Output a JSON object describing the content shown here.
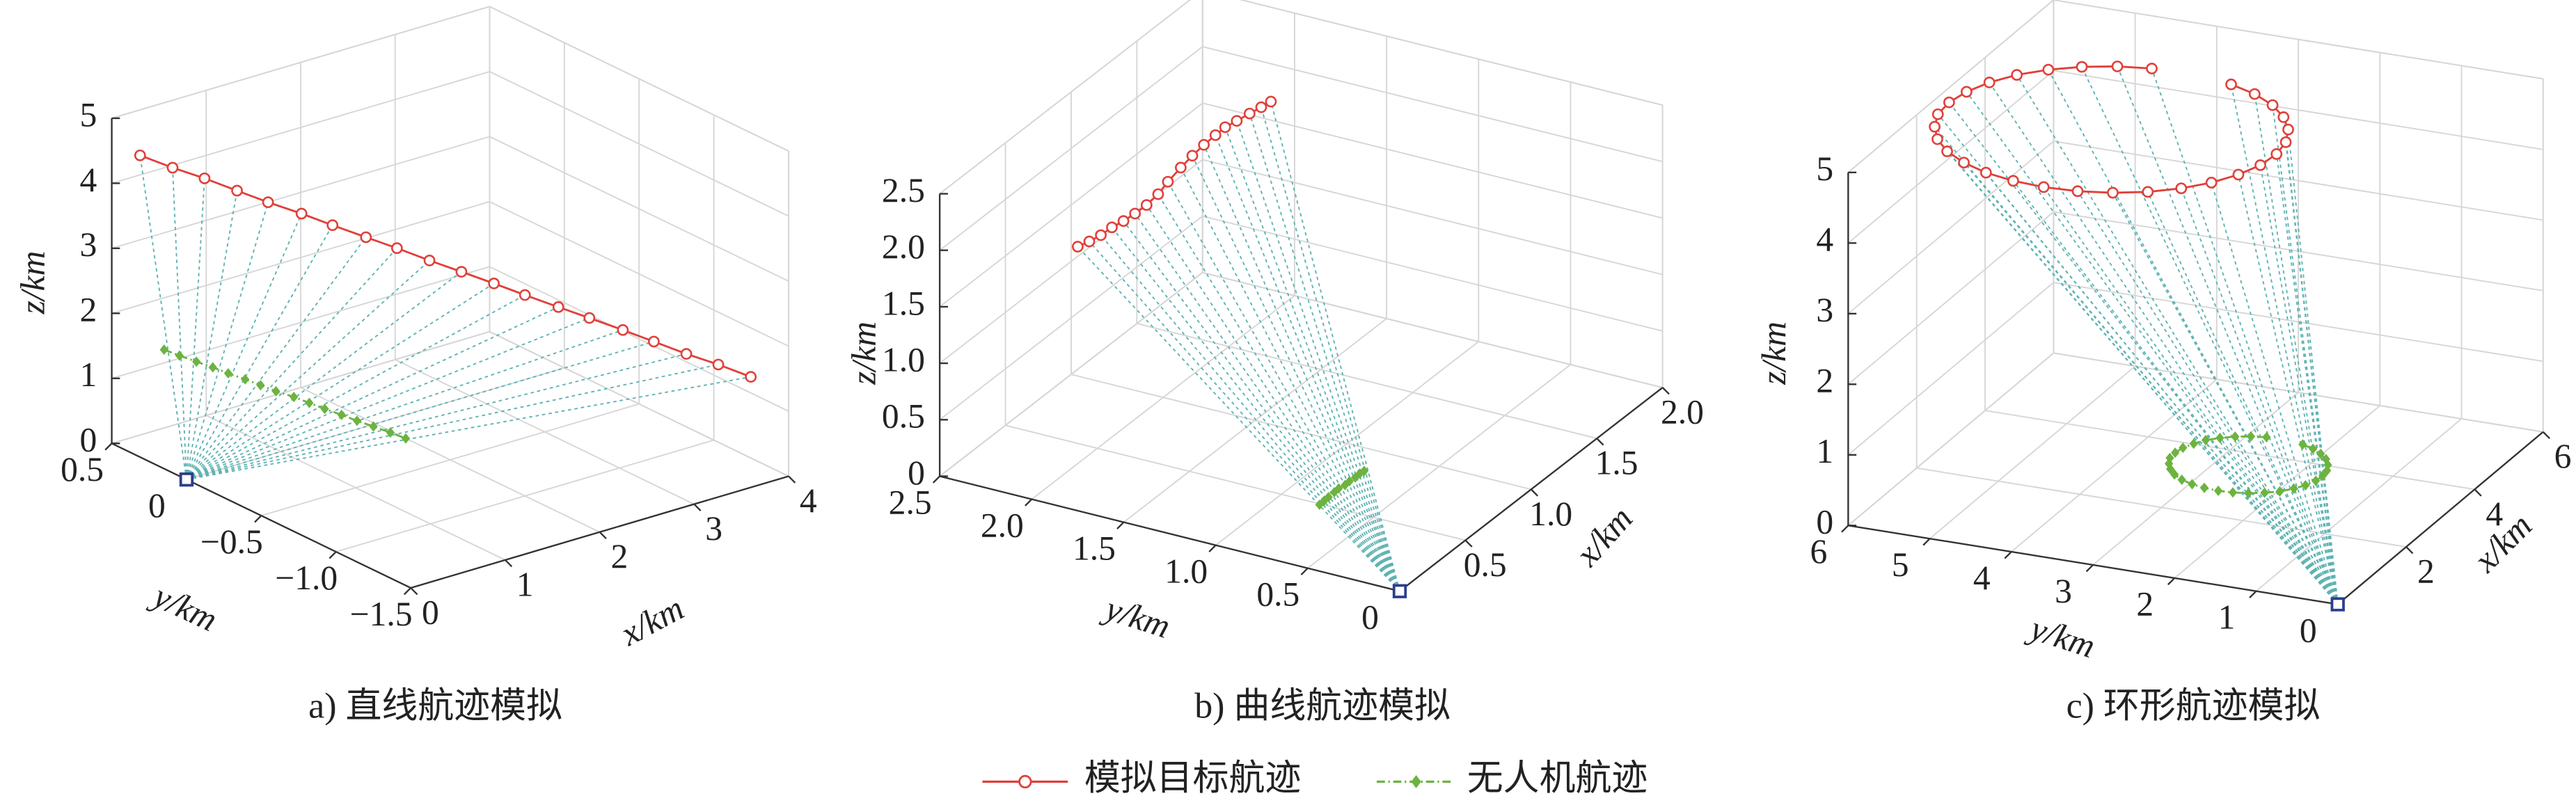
{
  "chart_data": [
    {
      "type": "line3d",
      "title": "a) 直线航迹模拟",
      "xlabel": "x/km",
      "ylabel": "y/km",
      "zlabel": "z/km",
      "xlim": [
        0,
        4
      ],
      "xticks": [
        0,
        1,
        2,
        3,
        4
      ],
      "ylim": [
        -1.5,
        0.5
      ],
      "yticks": [
        {
          "value": -1.5,
          "label": "−1.5"
        },
        {
          "value": -1,
          "label": "−1.0"
        },
        {
          "value": -0.5,
          "label": "−0.5"
        },
        0,
        0.5
      ],
      "zlim": [
        0,
        5
      ],
      "zticks": [
        0,
        1,
        2,
        3,
        4,
        5
      ],
      "grid": true,
      "station": {
        "x": 0,
        "y": 0,
        "z": 0,
        "color": "#2c3e8c"
      },
      "series": [
        {
          "name": "模拟目标航迹",
          "color": "#e0403a",
          "marker": "circle",
          "x": [
            0.3,
            0.47,
            0.65,
            0.82,
            0.99,
            1.17,
            1.34,
            1.52,
            1.69,
            1.86,
            2.04,
            2.21,
            2.38,
            2.56,
            2.73,
            2.91,
            3.08,
            3.25,
            3.43,
            3.6
          ],
          "y": [
            0.5,
            0.39,
            0.29,
            0.18,
            0.08,
            -0.03,
            -0.13,
            -0.24,
            -0.34,
            -0.45,
            -0.55,
            -0.66,
            -0.76,
            -0.87,
            -0.97,
            -1.08,
            -1.18,
            -1.29,
            -1.39,
            -1.5
          ],
          "z": [
            4.3,
            4.16,
            4.03,
            3.89,
            3.75,
            3.62,
            3.48,
            3.34,
            3.21,
            3.07,
            2.93,
            2.8,
            2.66,
            2.52,
            2.39,
            2.25,
            2.11,
            1.97,
            1.84,
            1.7
          ]
        },
        {
          "name": "无人机航迹",
          "color": "#6db33f",
          "marker": "diamond",
          "x": [
            0,
            0.1,
            0.2,
            0.31,
            0.41,
            0.51,
            0.61,
            0.71,
            0.82,
            0.92,
            1.02,
            1.12,
            1.22,
            1.33,
            1.43,
            1.53
          ],
          "y": [
            0.15,
            0.11,
            0.06,
            0.02,
            -0.02,
            -0.07,
            -0.11,
            -0.15,
            -0.2,
            -0.24,
            -0.28,
            -0.33,
            -0.37,
            -0.41,
            -0.46,
            -0.5
          ],
          "z": [
            1.83,
            1.74,
            1.66,
            1.57,
            1.48,
            1.4,
            1.31,
            1.22,
            1.14,
            1.05,
            0.96,
            0.88,
            0.79,
            0.7,
            0.62,
            0.53
          ]
        }
      ]
    },
    {
      "type": "line3d",
      "title": "b) 曲线航迹模拟",
      "xlabel": "x/km",
      "ylabel": "y/km",
      "zlabel": "z/km",
      "xlim": [
        0,
        2
      ],
      "xticks": [
        0.5,
        {
          "value": 1,
          "label": "1.0"
        },
        1.5,
        {
          "value": 2,
          "label": "2.0"
        }
      ],
      "ylim": [
        0,
        2.5
      ],
      "yticks": [
        0,
        0.5,
        {
          "value": 1,
          "label": "1.0"
        },
        1.5,
        {
          "value": 2,
          "label": "2.0"
        },
        2.5
      ],
      "zlim": [
        0,
        2.5
      ],
      "zticks": [
        0,
        0.5,
        {
          "value": 1,
          "label": "1.0"
        },
        1.5,
        {
          "value": 2,
          "label": "2.0"
        },
        2.5
      ],
      "grid": true,
      "station": {
        "x": 0,
        "y": 0,
        "z": 0,
        "color": "#2c3e8c"
      },
      "series": [
        {
          "color": "#e0403a",
          "marker": "circle",
          "x": [
            0.35,
            0.41,
            0.47,
            0.54,
            0.6,
            0.66,
            0.72,
            0.78,
            0.84,
            0.91,
            0.97,
            1.03,
            1.09,
            1.15,
            1.21,
            1.28,
            1.34,
            1.4
          ],
          "y": [
            2.0,
            1.98,
            1.96,
            1.95,
            1.93,
            1.91,
            1.89,
            1.87,
            1.86,
            1.84,
            1.82,
            1.8,
            1.78,
            1.77,
            1.75,
            1.73,
            1.71,
            1.7
          ],
          "z": [
            1.92,
            1.92,
            1.93,
            1.94,
            1.95,
            1.97,
            2.0,
            2.05,
            2.11,
            2.18,
            2.24,
            2.29,
            2.33,
            2.35,
            2.36,
            2.37,
            2.38,
            2.38
          ]
        },
        {
          "color": "#6db33f",
          "marker": "diamond",
          "x": [
            0.3,
            0.32,
            0.34,
            0.37,
            0.39,
            0.41,
            0.43,
            0.46,
            0.48,
            0.5
          ],
          "y": [
            0.65,
            0.64,
            0.63,
            0.62,
            0.61,
            0.59,
            0.58,
            0.57,
            0.56,
            0.55
          ],
          "z": [
            0.23,
            0.25,
            0.27,
            0.29,
            0.31,
            0.33,
            0.35,
            0.36,
            0.38,
            0.39
          ]
        }
      ]
    },
    {
      "type": "line3d",
      "title": "c) 环形航迹模拟",
      "xlabel": "x/km",
      "ylabel": "y/km",
      "zlabel": "z/km",
      "xlim": [
        0,
        6
      ],
      "xticks": [
        2,
        4,
        6
      ],
      "ylim": [
        0,
        6
      ],
      "yticks": [
        0,
        1,
        2,
        3,
        4,
        5,
        6
      ],
      "zlim": [
        0,
        5
      ],
      "zticks": [
        0,
        1,
        2,
        3,
        4,
        5
      ],
      "grid": true,
      "station": {
        "x": 0,
        "y": 0,
        "z": 0,
        "color": "#2c3e8c"
      },
      "series": [
        {
          "color": "#e0403a",
          "marker": "circle",
          "x": [
            4.68,
            4.51,
            4.27,
            3.97,
            3.63,
            3.25,
            2.86,
            2.46,
            2.08,
            1.72,
            1.41,
            1.15,
            0.96,
            0.84,
            0.8,
            0.84,
            0.95,
            1.14,
            1.39,
            1.7,
            2.05,
            2.43,
            2.83,
            3.22,
            3.6,
            3.95,
            4.25,
            4.49,
            4.67,
            4.77
          ],
          "y": [
            3.27,
            2.91,
            2.59,
            2.33,
            2.13,
            2.0,
            1.95,
            1.98,
            2.09,
            2.27,
            2.51,
            2.81,
            3.16,
            3.54,
            3.94,
            4.33,
            4.71,
            5.06,
            5.37,
            5.62,
            5.8,
            5.92,
            5.95,
            5.9,
            5.78,
            5.59,
            5.33,
            5.02,
            4.66,
            4.28
          ],
          "z": [
            4.85,
            4.85,
            4.85,
            4.85,
            4.85,
            4.85,
            4.85,
            4.85,
            4.85,
            4.85,
            4.85,
            4.85,
            4.85,
            4.85,
            4.85,
            4.85,
            4.85,
            4.85,
            4.85,
            4.85,
            4.85,
            4.85,
            4.85,
            4.85,
            4.85,
            4.85,
            4.85,
            4.85,
            4.85,
            4.85
          ]
        },
        {
          "color": "#6db33f",
          "marker": "diamond",
          "x": [
            2.05,
            1.97,
            1.86,
            1.73,
            1.57,
            1.4,
            1.23,
            1.05,
            0.87,
            0.72,
            0.57,
            0.46,
            0.37,
            0.32,
            0.3,
            0.32,
            0.37,
            0.45,
            0.57,
            0.71,
            0.86,
            1.03,
            1.21,
            1.39,
            1.56,
            1.72,
            1.85,
            1.96,
            2.04,
            2.09
          ],
          "y": [
            1.29,
            1.13,
            0.99,
            0.87,
            0.78,
            0.72,
            0.7,
            0.71,
            0.76,
            0.84,
            0.95,
            1.09,
            1.25,
            1.42,
            1.59,
            1.77,
            1.94,
            2.1,
            2.24,
            2.35,
            2.43,
            2.49,
            2.5,
            2.48,
            2.42,
            2.34,
            2.22,
            2.08,
            1.92,
            1.75
          ],
          "z": [
            1.19,
            1.19,
            1.19,
            1.19,
            1.19,
            1.19,
            1.19,
            1.19,
            1.19,
            1.19,
            1.19,
            1.19,
            1.19,
            1.19,
            1.19,
            1.19,
            1.19,
            1.19,
            1.19,
            1.19,
            1.19,
            1.19,
            1.19,
            1.19,
            1.19,
            1.19,
            1.19,
            1.19,
            1.19,
            1.19
          ]
        }
      ]
    }
  ]
}
